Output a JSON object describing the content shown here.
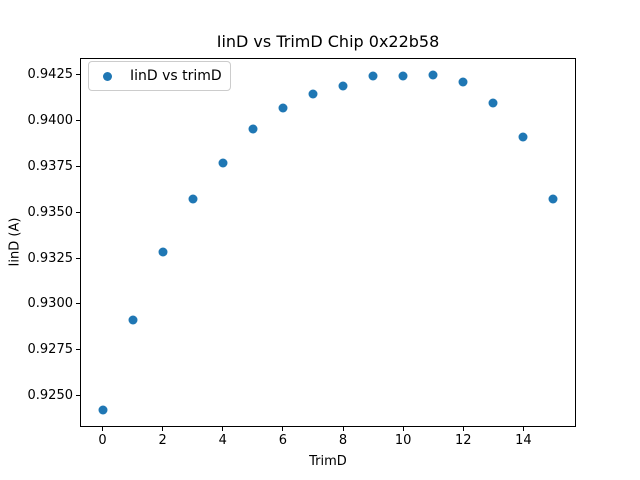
{
  "chart_data": {
    "type": "scatter",
    "title": "IinD vs TrimD Chip 0x22b58",
    "xlabel": "TrimD",
    "ylabel": "IinD (A)",
    "legend": "IinD vs trimD",
    "legend_position": "upper left",
    "grid": false,
    "x": [
      0,
      1,
      2,
      3,
      4,
      5,
      6,
      7,
      8,
      9,
      10,
      11,
      12,
      13,
      14,
      15
    ],
    "y": [
      0.92421,
      0.92913,
      0.93284,
      0.93574,
      0.93768,
      0.9395,
      0.94065,
      0.94145,
      0.94187,
      0.94241,
      0.94241,
      0.94248,
      0.94207,
      0.94096,
      0.93908,
      0.93569
    ],
    "xticks": [
      0,
      2,
      4,
      6,
      8,
      10,
      12,
      14
    ],
    "yticks": [
      0.925,
      0.9275,
      0.93,
      0.9325,
      0.935,
      0.9375,
      0.94,
      0.9425
    ],
    "xlim": [
      -0.75,
      15.75
    ],
    "ylim": [
      0.9233,
      0.94339
    ],
    "colors": {
      "marker": "#1f77b4",
      "spine": "#000000",
      "legend_border": "#cccccc",
      "text": "#000000",
      "background": "#ffffff"
    }
  }
}
